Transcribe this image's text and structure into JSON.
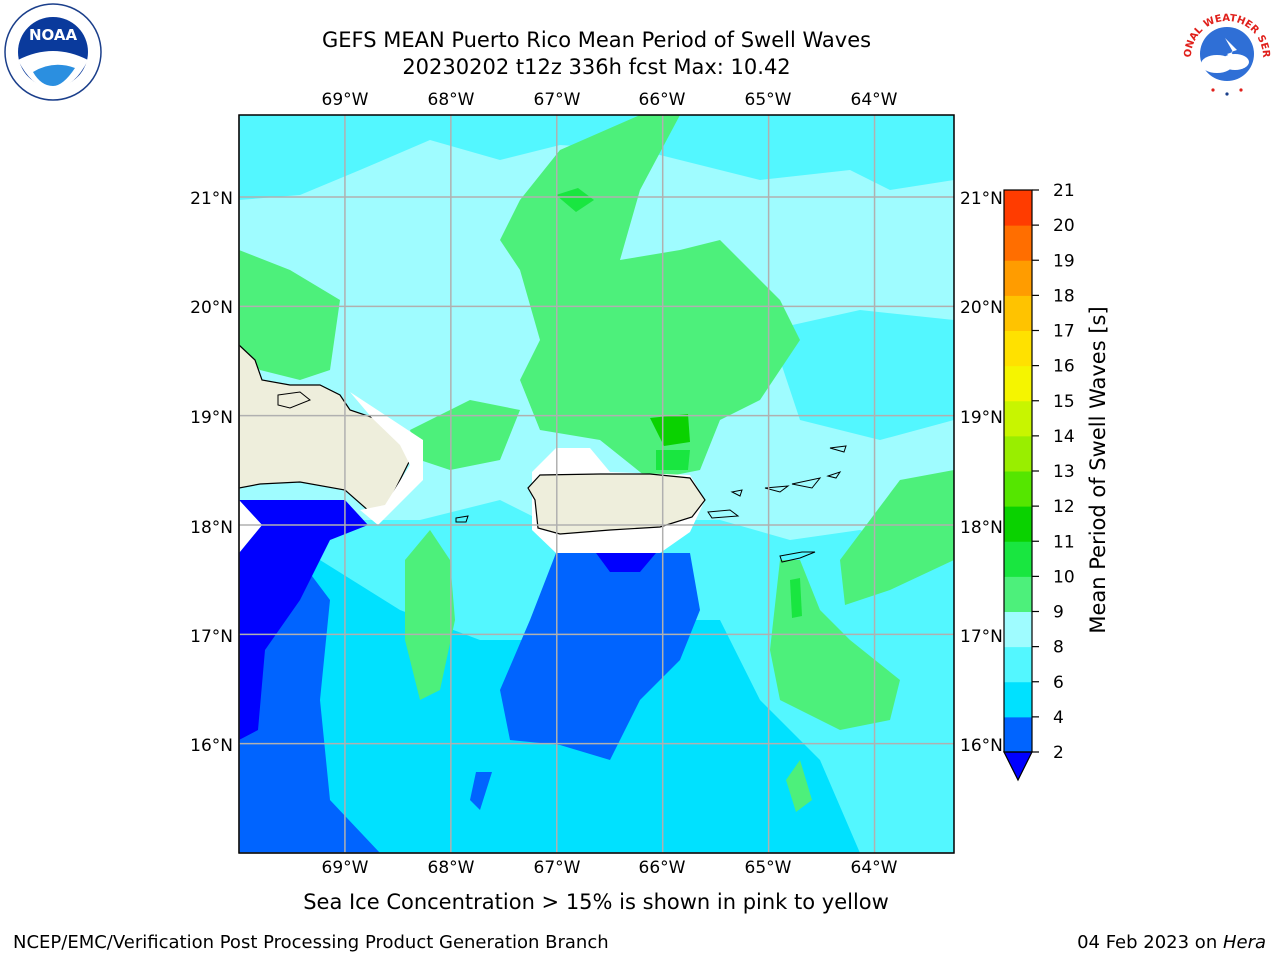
{
  "title": {
    "line1": "GEFS MEAN Puerto Rico Mean Period of Swell Waves",
    "line2": "20230202 t12z 336h fcst   Max: 10.42"
  },
  "map": {
    "lon_labels": [
      "69°W",
      "68°W",
      "67°W",
      "66°W",
      "65°W",
      "64°W"
    ],
    "lat_labels": [
      "21°N",
      "20°N",
      "19°N",
      "18°N",
      "17°N",
      "16°N"
    ],
    "lon_range": [
      -70.0,
      -63.25
    ],
    "lat_range": [
      15.0,
      21.75
    ]
  },
  "colorbar": {
    "label": "Mean Period of Swell Waves [s]",
    "ticks": [
      "2",
      "4",
      "6",
      "8",
      "9",
      "10",
      "11",
      "12",
      "13",
      "14",
      "15",
      "16",
      "17",
      "18",
      "19",
      "20",
      "21"
    ],
    "colors": [
      "#0064ff",
      "#00e1ff",
      "#53f7ff",
      "#9ffcff",
      "#4df07b",
      "#19e640",
      "#0ad200",
      "#55e600",
      "#99ee00",
      "#c8f500",
      "#f5f500",
      "#ffe100",
      "#ffc300",
      "#ff9c00",
      "#ff6e00",
      "#ff3c00"
    ],
    "under_color": "#0000ff"
  },
  "logos": {
    "noaa": "NOAA",
    "nws": "NATIONAL WEATHER SERVICE"
  },
  "note": "Sea Ice Concentration > 15% is shown in pink to yellow",
  "footer": {
    "left": "NCEP/EMC/Verification Post Processing Product Generation Branch",
    "date": "04 Feb 2023 on ",
    "machine": "Hera"
  }
}
